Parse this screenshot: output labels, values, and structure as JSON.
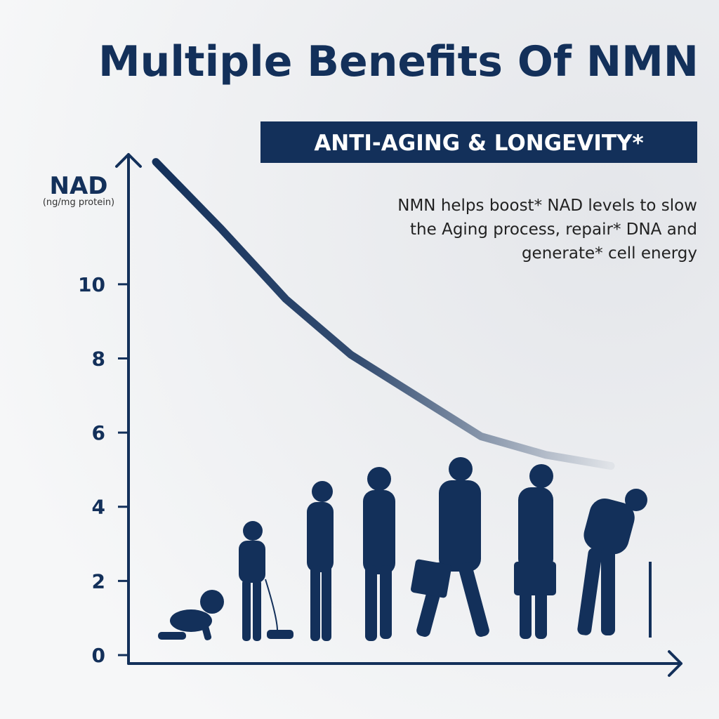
{
  "chart_data": {
    "type": "line",
    "title": "Multiple Benefits Of NMN",
    "subtitle": "ANTI-AGING & LONGEVITY*",
    "description": [
      "NMN helps boost* NAD levels to slow",
      "the Aging process, repair* DNA and",
      "generate* cell energy"
    ],
    "y_label": "NAD",
    "y_unit": "(ng/mg protein)",
    "categories": [
      null,
      null,
      null,
      null,
      null,
      null,
      null,
      null
    ],
    "values": [
      13.3,
      11.5,
      9.6,
      8.1,
      7.0,
      5.9,
      5.4,
      5.1
    ],
    "color": "#13305a",
    "ylim": [
      0,
      13.5
    ],
    "yticks": [
      0,
      2,
      4,
      6,
      8,
      10
    ]
  }
}
